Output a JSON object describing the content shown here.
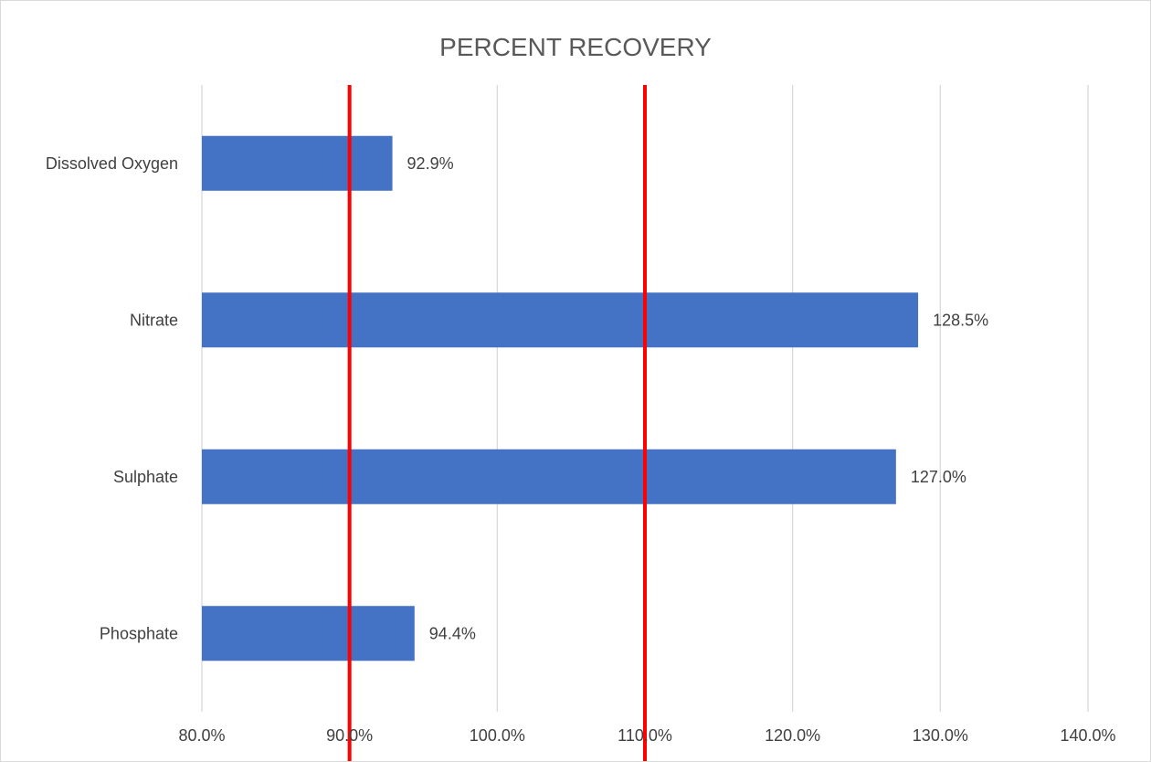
{
  "chart_data": {
    "type": "bar",
    "orientation": "horizontal",
    "title": "PERCENT RECOVERY",
    "xlabel": "",
    "ylabel": "",
    "categories": [
      "Dissolved Oxygen",
      "Nitrate",
      "Sulphate",
      "Phosphate"
    ],
    "values": [
      92.9,
      128.5,
      127.0,
      94.4
    ],
    "data_labels": [
      "92.9%",
      "128.5%",
      "127.0%",
      "94.4%"
    ],
    "xlim": [
      80,
      140
    ],
    "x_ticks": [
      80,
      90,
      100,
      110,
      120,
      130,
      140
    ],
    "x_tick_labels": [
      "80.0%",
      "90.0%",
      "100.0%",
      "110.0%",
      "120.0%",
      "130.0%",
      "140.0%"
    ],
    "reference_lines": [
      90,
      110
    ],
    "grid": true,
    "legend": "none",
    "colors": {
      "bar": "#4472c4",
      "reference_line": "#ff0000",
      "gridline": "#d9d9d9",
      "text": "#404040",
      "title": "#595959"
    }
  }
}
